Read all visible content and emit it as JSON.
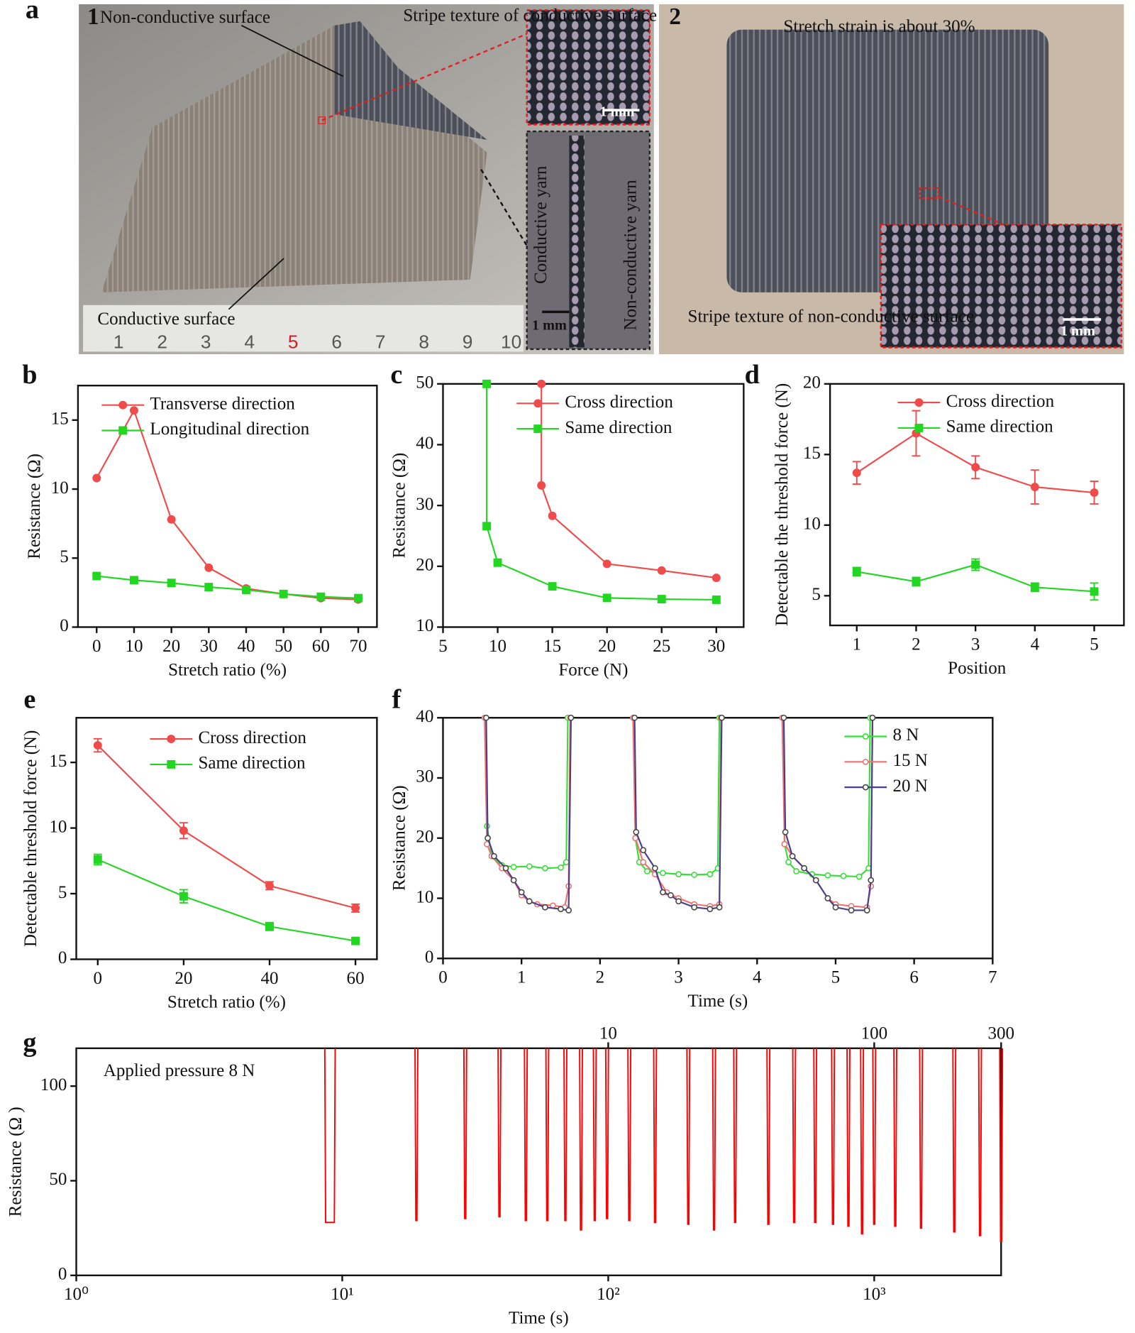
{
  "panel_a": {
    "label": "a",
    "photo1": {
      "number": "1",
      "non_conductive": "Non-conductive surface",
      "stripe_conductive": "Stripe texture of conductive surface",
      "scale_top": "1 mm",
      "conductive_yarn": "Conductive yarn",
      "non_conductive_yarn": "Non-conductive yarn",
      "scale_bottom": "1 mm",
      "conductive_surface": "Conductive surface",
      "ruler": [
        "1",
        "2",
        "3",
        "4",
        "5",
        "6",
        "7",
        "8",
        "9",
        "10"
      ]
    },
    "photo2": {
      "number": "2",
      "strain": "Stretch strain is about 30%",
      "stripe_non_conductive": "Stripe texture of non-conductive surface",
      "scale": "1 mm"
    }
  },
  "chart_data": [
    {
      "type": "line",
      "label": "b",
      "xlabel": "Stretch ratio (%)",
      "ylabel": "Resistance (Ω)",
      "x": [
        0,
        10,
        20,
        30,
        40,
        50,
        60,
        70
      ],
      "xlim": [
        -5,
        75
      ],
      "xticks": [
        0,
        10,
        20,
        30,
        40,
        50,
        60,
        70
      ],
      "ylim": [
        0,
        17.5
      ],
      "yticks": [
        0,
        5,
        10,
        15
      ],
      "legend": "upper right",
      "series": [
        {
          "name": "Transverse direction",
          "color": "#ef4b4b",
          "marker": "circle",
          "values": [
            10.8,
            15.7,
            7.8,
            4.3,
            2.8,
            2.4,
            2.1,
            2.0
          ]
        },
        {
          "name": "Longitudinal direction",
          "color": "#22d622",
          "marker": "square",
          "values": [
            3.7,
            3.4,
            3.2,
            2.9,
            2.7,
            2.4,
            2.2,
            2.1
          ]
        }
      ]
    },
    {
      "type": "line",
      "label": "c",
      "xlabel": "Force (N)",
      "ylabel": "Resistance (Ω)",
      "xlim": [
        5,
        32.5
      ],
      "xticks": [
        5,
        10,
        15,
        20,
        25,
        30
      ],
      "ylim": [
        10,
        50
      ],
      "yticks": [
        10,
        20,
        30,
        40,
        50
      ],
      "legend": "upper right",
      "series": [
        {
          "name": "Cross direction",
          "color": "#ef4b4b",
          "marker": "circle",
          "x": [
            14,
            14,
            15,
            20,
            25,
            30
          ],
          "values": [
            50,
            33.3,
            28.3,
            20.4,
            19.3,
            18.1
          ]
        },
        {
          "name": "Same direction",
          "color": "#22d622",
          "marker": "square",
          "x": [
            9,
            9,
            10,
            15,
            20,
            25,
            30
          ],
          "values": [
            50,
            26.6,
            20.6,
            16.7,
            14.8,
            14.6,
            14.5
          ]
        }
      ]
    },
    {
      "type": "line",
      "label": "d",
      "xlabel": "Position",
      "ylabel": "Detectable the threshold force (N)",
      "x": [
        1,
        2,
        3,
        4,
        5
      ],
      "xlim": [
        0.55,
        5.5
      ],
      "xticks": [
        1,
        2,
        3,
        4,
        5
      ],
      "ylim": [
        2.9,
        20
      ],
      "yticks": [
        5,
        10,
        15,
        20
      ],
      "legend": "upper right",
      "series": [
        {
          "name": "Cross direction",
          "color": "#ef4b4b",
          "marker": "circle",
          "values": [
            13.7,
            16.5,
            14.1,
            12.7,
            12.3
          ],
          "error": [
            0.8,
            1.6,
            0.8,
            1.2,
            0.8
          ]
        },
        {
          "name": "Same direction",
          "color": "#22d622",
          "marker": "square",
          "values": [
            6.7,
            6.0,
            7.2,
            5.6,
            5.3
          ],
          "error": [
            0.3,
            0.3,
            0.4,
            0.3,
            0.6
          ]
        }
      ]
    },
    {
      "type": "line",
      "label": "e",
      "xlabel": "Stretch ratio (%)",
      "ylabel": "Detectable threshold force (N)",
      "x": [
        0,
        20,
        40,
        60
      ],
      "xlim": [
        -5,
        65
      ],
      "xticks": [
        0,
        20,
        40,
        60
      ],
      "ylim": [
        0,
        18.4
      ],
      "yticks": [
        0,
        5,
        10,
        15
      ],
      "legend": "upper right",
      "series": [
        {
          "name": "Cross direction",
          "color": "#ef4b4b",
          "marker": "circle",
          "values": [
            16.3,
            9.8,
            5.6,
            3.9
          ],
          "error": [
            0.5,
            0.6,
            0.3,
            0.3
          ]
        },
        {
          "name": "Same direction",
          "color": "#22d622",
          "marker": "square",
          "values": [
            7.6,
            4.8,
            2.5,
            1.4
          ],
          "error": [
            0.4,
            0.5,
            0.3,
            0.2
          ]
        }
      ]
    },
    {
      "type": "line",
      "label": "f",
      "xlabel": "Time (s)",
      "ylabel": "Resistance (Ω)",
      "xlim": [
        0,
        7
      ],
      "xticks": [
        0,
        1,
        2,
        3,
        4,
        5,
        6,
        7
      ],
      "ylim": [
        0,
        40
      ],
      "yticks": [
        0,
        10,
        20,
        30,
        40
      ],
      "legend": "upper right",
      "series": [
        {
          "name": "8 N",
          "color": "#33e033",
          "marker": "open-circle",
          "x": [
            0.54,
            0.56,
            0.62,
            0.75,
            0.9,
            1.1,
            1.3,
            1.5,
            1.57,
            1.59,
            2.0,
            2.43,
            2.45,
            2.5,
            2.6,
            2.8,
            3.0,
            3.2,
            3.4,
            3.5,
            3.52,
            4.0,
            4.33,
            4.35,
            4.4,
            4.5,
            4.7,
            4.9,
            5.1,
            5.3,
            5.42,
            5.44
          ],
          "values": [
            40,
            22,
            17,
            15.5,
            15.2,
            15.3,
            15.0,
            15.1,
            16,
            40,
            null,
            40,
            20,
            16,
            14.5,
            14.2,
            14.0,
            13.9,
            14.0,
            15,
            40,
            null,
            40,
            19,
            16,
            14.5,
            14.0,
            13.8,
            13.7,
            13.6,
            15,
            40
          ]
        },
        {
          "name": "15 N",
          "color": "#f07070",
          "marker": "open-circle",
          "x": [
            0.53,
            0.56,
            0.62,
            0.75,
            0.9,
            1.0,
            1.1,
            1.2,
            1.4,
            1.55,
            1.6,
            1.62,
            2.0,
            2.42,
            2.45,
            2.55,
            2.7,
            2.85,
            3.0,
            3.2,
            3.4,
            3.52,
            3.54,
            4.0,
            4.32,
            4.35,
            4.45,
            4.6,
            4.75,
            4.9,
            5.0,
            5.2,
            5.4,
            5.45,
            5.47
          ],
          "values": [
            40,
            19,
            17,
            15,
            13,
            10.5,
            9.5,
            9,
            8.8,
            8.5,
            12,
            40,
            null,
            40,
            20,
            16,
            14,
            11,
            10,
            9,
            8.7,
            9,
            40,
            null,
            40,
            19,
            17,
            15,
            13,
            10,
            9,
            8.7,
            8.5,
            12,
            40
          ]
        },
        {
          "name": "20 N",
          "color": "#4a3d8f",
          "marker": "open-circle",
          "x": [
            0.55,
            0.57,
            0.65,
            0.8,
            0.9,
            1.0,
            1.1,
            1.3,
            1.5,
            1.6,
            1.63,
            2.0,
            2.44,
            2.46,
            2.55,
            2.7,
            2.8,
            2.9,
            3.0,
            3.2,
            3.4,
            3.52,
            3.55,
            4.0,
            4.34,
            4.36,
            4.45,
            4.6,
            4.75,
            4.9,
            5.0,
            5.2,
            5.4,
            5.45,
            5.47
          ],
          "values": [
            40,
            20,
            17,
            15,
            13,
            11,
            9.5,
            8.5,
            8.2,
            8,
            40,
            null,
            40,
            21,
            18,
            15,
            11,
            10.5,
            9.5,
            8.5,
            8.2,
            8.5,
            40,
            null,
            40,
            21,
            17,
            15,
            13,
            10,
            8.5,
            8,
            8,
            13,
            40
          ]
        }
      ]
    },
    {
      "type": "spikes",
      "label": "g",
      "xlabel": "Time (s)",
      "ylabel": "Resistance (Ω )",
      "annotation": "Applied pressure 8 N",
      "xlog": true,
      "xlim": [
        1,
        3000
      ],
      "xticks": [
        {
          "value": 1,
          "label": "10⁰"
        },
        {
          "value": 10,
          "label": "10¹"
        },
        {
          "value": 100,
          "label": "10²"
        },
        {
          "value": 1000,
          "label": "10³"
        }
      ],
      "x2ticks": [
        {
          "value": 100,
          "label": "10"
        },
        {
          "value": 1000,
          "label": "100"
        },
        {
          "value": 3000,
          "label": "300"
        }
      ],
      "ylim": [
        0,
        120
      ],
      "yticks": [
        0,
        50,
        100
      ],
      "series": [
        {
          "color": "#ff0000",
          "x": [
            9,
            19,
            29,
            39,
            49,
            59,
            69,
            79,
            89,
            99,
            120,
            150,
            200,
            250,
            300,
            400,
            500,
            600,
            700,
            800,
            900,
            1000,
            1200,
            1500,
            2000,
            2500,
            3000
          ],
          "values": [
            28,
            29,
            30,
            31,
            29,
            29,
            29,
            24,
            29,
            30,
            29,
            28,
            27,
            24,
            28,
            27,
            28,
            28,
            27,
            26,
            22,
            27,
            26,
            25,
            23,
            21,
            18
          ]
        }
      ]
    }
  ]
}
